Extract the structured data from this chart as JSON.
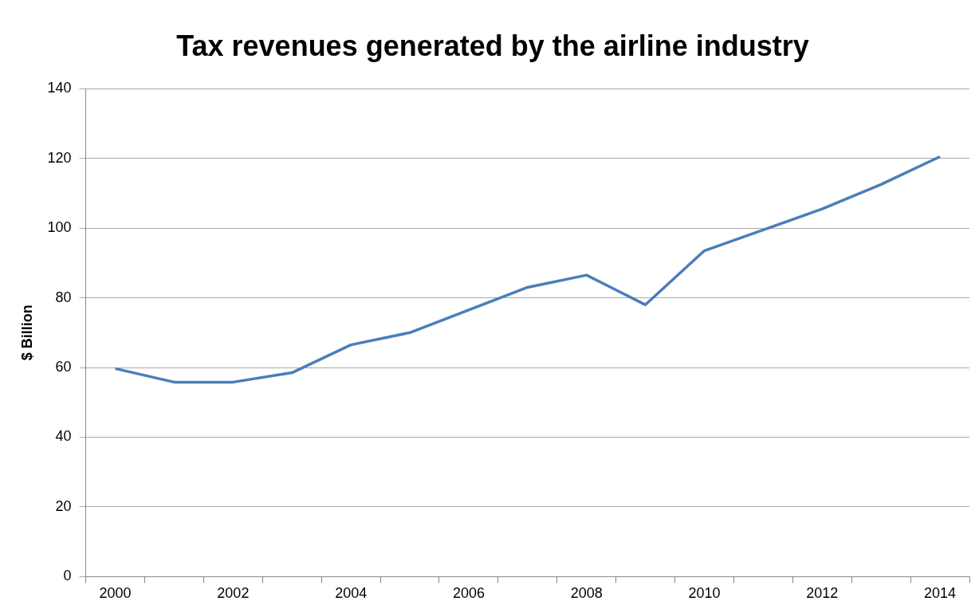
{
  "chart_data": {
    "type": "line",
    "title": "Tax revenues generated by the airline industry",
    "ylabel": "$ Billion",
    "categories": [
      "2000",
      null,
      "2002",
      null,
      "2004",
      null,
      "2006",
      null,
      "2008",
      null,
      "2010",
      null,
      "2012",
      null,
      "2014"
    ],
    "series": [
      {
        "color": "#4a7ebb",
        "values": [
          59.7,
          55.8,
          55.8,
          58.5,
          66.5,
          70,
          76.5,
          83,
          86.5,
          78,
          93.5,
          99.5,
          105.5,
          112.5,
          120.5
        ]
      }
    ],
    "ylim": [
      0,
      140
    ],
    "yticks": [
      0,
      20,
      40,
      60,
      80,
      100,
      120,
      140
    ],
    "grid": "y",
    "legend": false,
    "marker": "none",
    "line_style": "solid"
  }
}
